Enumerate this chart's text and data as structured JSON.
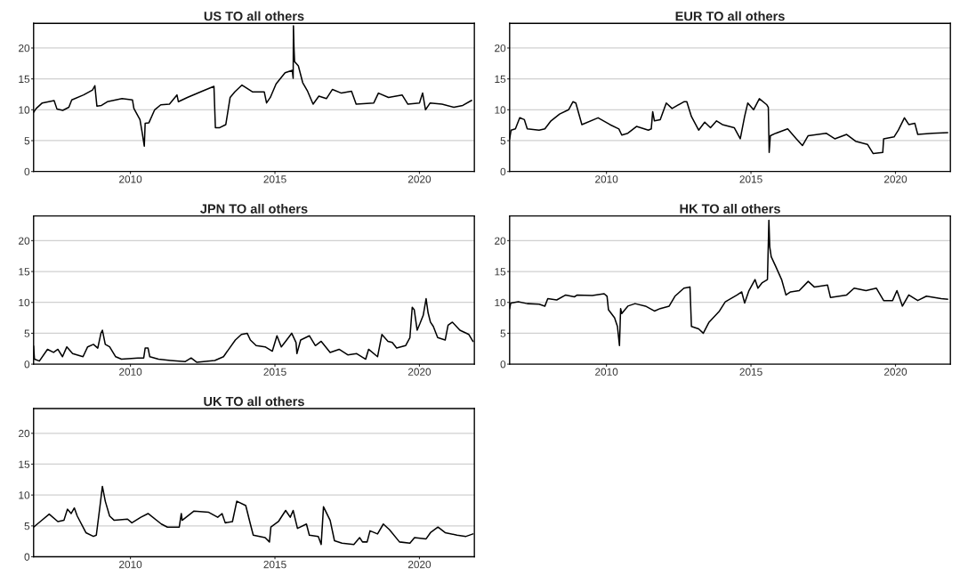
{
  "chart_data": [
    {
      "type": "line",
      "title": "US TO all others",
      "xlim": [
        2006.65,
        2021.9
      ],
      "ylim": [
        0,
        24
      ],
      "xticks": [
        2010,
        2015,
        2020
      ],
      "yticks": [
        0,
        5,
        10,
        15,
        20
      ],
      "grid": "y",
      "series": [
        {
          "color": "#000000",
          "x": [
            2006.65,
            2006.74,
            2006.95,
            2007.36,
            2007.46,
            2007.66,
            2007.87,
            2007.97,
            2008.38,
            2008.69,
            2008.77,
            2008.84,
            2009.0,
            2009.2,
            2009.71,
            2010.07,
            2010.12,
            2010.33,
            2010.41,
            2010.48,
            2010.51,
            2010.64,
            2010.84,
            2011.05,
            2011.35,
            2011.61,
            2011.66,
            2011.97,
            2012.48,
            2012.89,
            2012.94,
            2013.09,
            2013.3,
            2013.45,
            2013.61,
            2013.86,
            2014.22,
            2014.63,
            2014.71,
            2014.84,
            2015.04,
            2015.35,
            2015.6,
            2015.63,
            2015.64,
            2015.66,
            2015.68,
            2015.81,
            2015.96,
            2016.12,
            2016.32,
            2016.52,
            2016.78,
            2016.99,
            2017.3,
            2017.65,
            2017.81,
            2018.42,
            2018.58,
            2018.93,
            2019.4,
            2019.6,
            2020.0,
            2020.11,
            2020.21,
            2020.37,
            2020.78,
            2021.19,
            2021.5,
            2021.8
          ],
          "values": [
            9.6,
            10.2,
            11.1,
            11.5,
            10.1,
            9.9,
            10.4,
            11.6,
            12.4,
            13.2,
            13.9,
            10.6,
            10.7,
            11.3,
            11.8,
            11.6,
            10.2,
            8.4,
            6.2,
            4.1,
            7.8,
            7.9,
            10.0,
            10.8,
            10.9,
            12.4,
            11.3,
            12.0,
            13.0,
            13.8,
            7.1,
            7.1,
            7.6,
            12.0,
            12.9,
            14.0,
            12.9,
            12.9,
            11.1,
            12.0,
            14.2,
            16.0,
            16.4,
            15.1,
            23.6,
            20.0,
            17.8,
            17.1,
            14.4,
            13.1,
            10.9,
            12.2,
            11.8,
            13.3,
            12.7,
            13.0,
            10.9,
            11.1,
            12.7,
            12.0,
            12.4,
            10.9,
            11.1,
            12.7,
            10.0,
            11.1,
            10.9,
            10.4,
            10.7,
            11.5
          ]
        }
      ]
    },
    {
      "type": "line",
      "title": "EUR TO all others",
      "xlim": [
        2006.65,
        2021.9
      ],
      "ylim": [
        0,
        24
      ],
      "xticks": [
        2010,
        2015,
        2020
      ],
      "yticks": [
        0,
        5,
        10,
        15,
        20
      ],
      "grid": "y",
      "series": [
        {
          "color": "#000000",
          "x": [
            2006.65,
            2006.7,
            2006.85,
            2007.0,
            2007.16,
            2007.26,
            2007.67,
            2007.87,
            2008.08,
            2008.38,
            2008.69,
            2008.84,
            2008.94,
            2009.15,
            2009.71,
            2010.12,
            2010.43,
            2010.53,
            2010.74,
            2011.04,
            2011.45,
            2011.55,
            2011.6,
            2011.66,
            2011.86,
            2012.07,
            2012.27,
            2012.68,
            2012.78,
            2012.94,
            2013.19,
            2013.4,
            2013.6,
            2013.81,
            2014.01,
            2014.42,
            2014.63,
            2014.78,
            2014.89,
            2015.09,
            2015.29,
            2015.55,
            2015.6,
            2015.63,
            2015.67,
            2015.86,
            2016.27,
            2016.57,
            2016.78,
            2016.98,
            2017.6,
            2017.9,
            2018.31,
            2018.62,
            2019.03,
            2019.23,
            2019.56,
            2019.59,
            2019.95,
            2020.1,
            2020.31,
            2020.46,
            2020.67,
            2020.77,
            2021.28,
            2021.8
          ],
          "values": [
            5.3,
            6.7,
            6.9,
            8.7,
            8.4,
            6.9,
            6.7,
            6.9,
            8.2,
            9.3,
            10.0,
            11.3,
            11.1,
            7.6,
            8.7,
            7.6,
            6.9,
            5.9,
            6.2,
            7.3,
            6.7,
            6.9,
            9.7,
            8.2,
            8.4,
            11.1,
            10.2,
            11.3,
            11.3,
            8.9,
            6.7,
            8.0,
            7.1,
            8.2,
            7.6,
            7.1,
            5.3,
            8.9,
            11.1,
            10.0,
            11.8,
            10.8,
            10.4,
            3.1,
            5.8,
            6.2,
            6.9,
            5.3,
            4.2,
            5.8,
            6.2,
            5.3,
            6.0,
            4.9,
            4.4,
            2.9,
            3.1,
            5.3,
            5.6,
            6.7,
            8.7,
            7.6,
            7.8,
            6.0,
            6.2,
            6.3
          ]
        }
      ]
    },
    {
      "type": "line",
      "title": "JPN TO all others",
      "xlim": [
        2006.65,
        2021.9
      ],
      "ylim": [
        0,
        24
      ],
      "xticks": [
        2010,
        2015,
        2020
      ],
      "yticks": [
        0,
        5,
        10,
        15,
        20
      ],
      "grid": "y",
      "series": [
        {
          "color": "#000000",
          "x": [
            2006.65,
            2006.68,
            2006.85,
            2007.13,
            2007.34,
            2007.49,
            2007.65,
            2007.8,
            2008.0,
            2008.36,
            2008.52,
            2008.72,
            2008.87,
            2008.98,
            2009.03,
            2009.13,
            2009.28,
            2009.49,
            2009.69,
            2010.26,
            2010.46,
            2010.51,
            2010.61,
            2010.67,
            2010.97,
            2011.38,
            2011.89,
            2012.1,
            2012.3,
            2012.92,
            2013.22,
            2013.43,
            2013.63,
            2013.84,
            2014.04,
            2014.15,
            2014.35,
            2014.66,
            2014.91,
            2015.07,
            2015.22,
            2015.37,
            2015.58,
            2015.73,
            2015.76,
            2015.89,
            2016.19,
            2016.4,
            2016.6,
            2016.91,
            2017.22,
            2017.52,
            2017.83,
            2018.14,
            2018.24,
            2018.55,
            2018.7,
            2018.91,
            2019.06,
            2019.21,
            2019.52,
            2019.67,
            2019.75,
            2019.82,
            2019.92,
            2020.02,
            2020.13,
            2020.23,
            2020.3,
            2020.38,
            2020.48,
            2020.63,
            2020.89,
            2020.99,
            2021.14,
            2021.4,
            2021.71,
            2021.85
          ],
          "values": [
            2.9,
            0.8,
            0.5,
            2.4,
            1.9,
            2.4,
            1.2,
            2.8,
            1.7,
            1.2,
            2.8,
            3.2,
            2.6,
            5.0,
            5.5,
            3.2,
            2.8,
            1.2,
            0.8,
            1.0,
            1.0,
            2.6,
            2.6,
            1.2,
            0.8,
            0.6,
            0.4,
            1.0,
            0.3,
            0.6,
            1.2,
            2.6,
            3.9,
            4.8,
            5.0,
            3.9,
            3.0,
            2.8,
            2.1,
            4.6,
            2.8,
            3.7,
            5.0,
            3.5,
            1.7,
            3.9,
            4.6,
            3.0,
            3.7,
            1.9,
            2.4,
            1.5,
            1.7,
            0.8,
            2.4,
            1.2,
            4.8,
            3.7,
            3.5,
            2.6,
            3.0,
            4.3,
            9.2,
            8.8,
            5.5,
            6.6,
            7.9,
            10.6,
            8.3,
            6.8,
            6.1,
            4.3,
            3.9,
            6.3,
            6.8,
            5.5,
            4.8,
            3.7
          ]
        }
      ]
    },
    {
      "type": "line",
      "title": "HK TO all others",
      "xlim": [
        2006.65,
        2021.9
      ],
      "ylim": [
        0,
        24
      ],
      "xticks": [
        2010,
        2015,
        2020
      ],
      "yticks": [
        0,
        5,
        10,
        15,
        20
      ],
      "grid": "y",
      "series": [
        {
          "color": "#000000",
          "x": [
            2006.65,
            2006.69,
            2006.95,
            2007.26,
            2007.67,
            2007.87,
            2007.97,
            2008.28,
            2008.59,
            2008.89,
            2008.99,
            2009.51,
            2009.92,
            2010.02,
            2010.07,
            2010.28,
            2010.38,
            2010.45,
            2010.49,
            2010.53,
            2010.74,
            2010.99,
            2011.35,
            2011.66,
            2011.86,
            2012.17,
            2012.37,
            2012.68,
            2012.89,
            2012.94,
            2013.19,
            2013.35,
            2013.55,
            2013.91,
            2014.11,
            2014.52,
            2014.68,
            2014.78,
            2014.93,
            2015.14,
            2015.24,
            2015.39,
            2015.57,
            2015.62,
            2015.65,
            2015.7,
            2015.85,
            2016.06,
            2016.21,
            2016.37,
            2016.67,
            2016.98,
            2017.19,
            2017.65,
            2017.75,
            2018.31,
            2018.57,
            2018.98,
            2019.34,
            2019.59,
            2019.9,
            2020.05,
            2020.15,
            2020.24,
            2020.46,
            2020.77,
            2021.07,
            2021.58,
            2021.8
          ],
          "values": [
            9.0,
            9.9,
            10.1,
            9.8,
            9.7,
            9.4,
            10.6,
            10.4,
            11.2,
            10.9,
            11.2,
            11.1,
            11.4,
            11.0,
            8.8,
            7.5,
            6.1,
            3.0,
            9.0,
            8.2,
            9.4,
            9.8,
            9.4,
            8.6,
            9.0,
            9.4,
            11.0,
            12.3,
            12.5,
            6.1,
            5.7,
            5.0,
            6.8,
            8.6,
            10.1,
            11.2,
            11.7,
            9.9,
            11.9,
            13.7,
            12.3,
            13.2,
            13.7,
            23.3,
            19.0,
            17.4,
            15.9,
            13.7,
            11.2,
            11.7,
            11.9,
            13.4,
            12.5,
            12.8,
            10.8,
            11.2,
            12.3,
            11.9,
            12.3,
            10.3,
            10.3,
            11.9,
            10.6,
            9.4,
            11.2,
            10.3,
            11.0,
            10.6,
            10.5
          ]
        }
      ]
    },
    {
      "type": "line",
      "title": "UK TO all others",
      "xlim": [
        2006.65,
        2021.9
      ],
      "ylim": [
        0,
        24
      ],
      "xticks": [
        2010,
        2015,
        2020
      ],
      "yticks": [
        0,
        5,
        10,
        15,
        20
      ],
      "grid": "y",
      "series": [
        {
          "color": "#000000",
          "x": [
            2006.65,
            2006.88,
            2007.19,
            2007.49,
            2007.7,
            2007.82,
            2007.95,
            2008.06,
            2008.16,
            2008.46,
            2008.72,
            2008.82,
            2008.95,
            2009.03,
            2009.13,
            2009.28,
            2009.44,
            2009.9,
            2010.05,
            2010.36,
            2010.61,
            2011.07,
            2011.28,
            2011.69,
            2011.76,
            2011.79,
            2012.2,
            2012.71,
            2013.02,
            2013.17,
            2013.28,
            2013.53,
            2013.68,
            2013.99,
            2014.15,
            2014.25,
            2014.66,
            2014.81,
            2014.86,
            2015.12,
            2015.37,
            2015.53,
            2015.63,
            2015.78,
            2016.09,
            2016.19,
            2016.5,
            2016.6,
            2016.68,
            2016.91,
            2017.06,
            2017.32,
            2017.73,
            2017.93,
            2018.03,
            2018.19,
            2018.29,
            2018.55,
            2018.75,
            2018.96,
            2019.31,
            2019.67,
            2019.83,
            2020.23,
            2020.38,
            2020.64,
            2020.89,
            2021.3,
            2021.61,
            2021.85
          ],
          "values": [
            4.8,
            5.7,
            6.9,
            5.7,
            5.9,
            7.7,
            7.0,
            7.9,
            6.6,
            3.9,
            3.3,
            3.5,
            8.3,
            11.4,
            9.0,
            6.6,
            5.9,
            6.1,
            5.5,
            6.4,
            7.0,
            5.3,
            4.8,
            4.8,
            7.0,
            5.9,
            7.4,
            7.2,
            6.4,
            7.0,
            5.5,
            5.7,
            9.0,
            8.3,
            5.3,
            3.5,
            3.1,
            2.4,
            4.8,
            5.7,
            7.5,
            6.4,
            7.5,
            4.6,
            5.3,
            3.5,
            3.3,
            2.0,
            8.1,
            5.9,
            2.6,
            2.2,
            2.0,
            3.1,
            2.4,
            2.4,
            4.2,
            3.7,
            5.3,
            4.4,
            2.4,
            2.2,
            3.1,
            2.9,
            3.9,
            4.8,
            3.9,
            3.5,
            3.3,
            3.7
          ]
        }
      ]
    }
  ]
}
